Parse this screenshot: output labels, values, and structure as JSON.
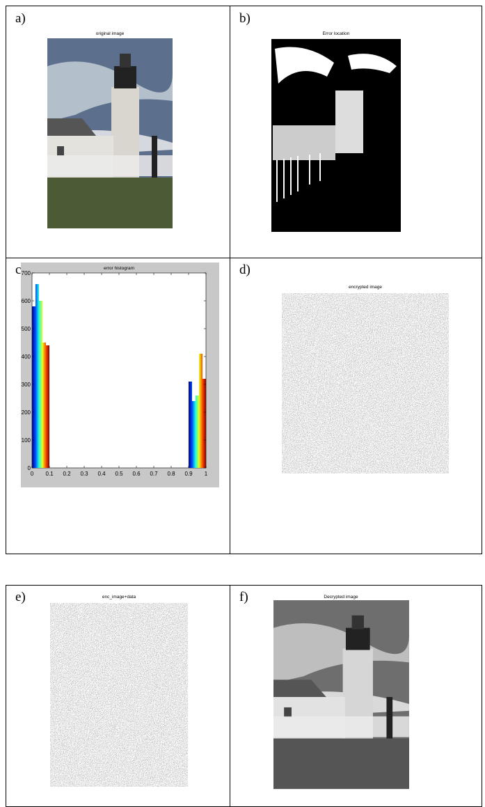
{
  "panels": [
    {
      "label": "a)",
      "title": "original image"
    },
    {
      "label": "b)",
      "title": "Error location"
    },
    {
      "label": "c)"
    },
    {
      "label": "d)",
      "title": "encrypted image"
    },
    {
      "label": "e)",
      "title": "enc_image+data"
    },
    {
      "label": "f)",
      "title": "Decrypted image"
    }
  ],
  "histogram": {
    "type": "histogram",
    "title": "error histogram",
    "bins": [
      0,
      0.02,
      0.04,
      0.06,
      0.08,
      0.1,
      0.12,
      0.14,
      0.16,
      0.18,
      0.2,
      0.22,
      0.24,
      0.26,
      0.28,
      0.3,
      0.32,
      0.34,
      0.36,
      0.38,
      0.4,
      0.42,
      0.44,
      0.46,
      0.48,
      0.5,
      0.52,
      0.54,
      0.56,
      0.58,
      0.6,
      0.62,
      0.64,
      0.66,
      0.68,
      0.7,
      0.72,
      0.74,
      0.76,
      0.78,
      0.8,
      0.82,
      0.84,
      0.86,
      0.88,
      0.9,
      0.92,
      0.94,
      0.96,
      0.98,
      1
    ],
    "counts": [
      580,
      660,
      600,
      450,
      440,
      0,
      0,
      0,
      0,
      0,
      0,
      0,
      0,
      0,
      0,
      0,
      0,
      0,
      0,
      0,
      0,
      0,
      0,
      0,
      0,
      0,
      0,
      0,
      0,
      0,
      0,
      0,
      0,
      0,
      0,
      0,
      0,
      0,
      0,
      0,
      0,
      0,
      0,
      0,
      0,
      310,
      240,
      260,
      410,
      320
    ],
    "xlim": [
      0,
      1
    ],
    "ylim": [
      0,
      700
    ],
    "xticks": [
      0,
      0.1,
      0.2,
      0.3,
      0.4,
      0.5,
      0.6,
      0.7,
      0.8,
      0.9,
      1
    ],
    "yticks": [
      0,
      100,
      200,
      300,
      400,
      500,
      600,
      700
    ]
  }
}
